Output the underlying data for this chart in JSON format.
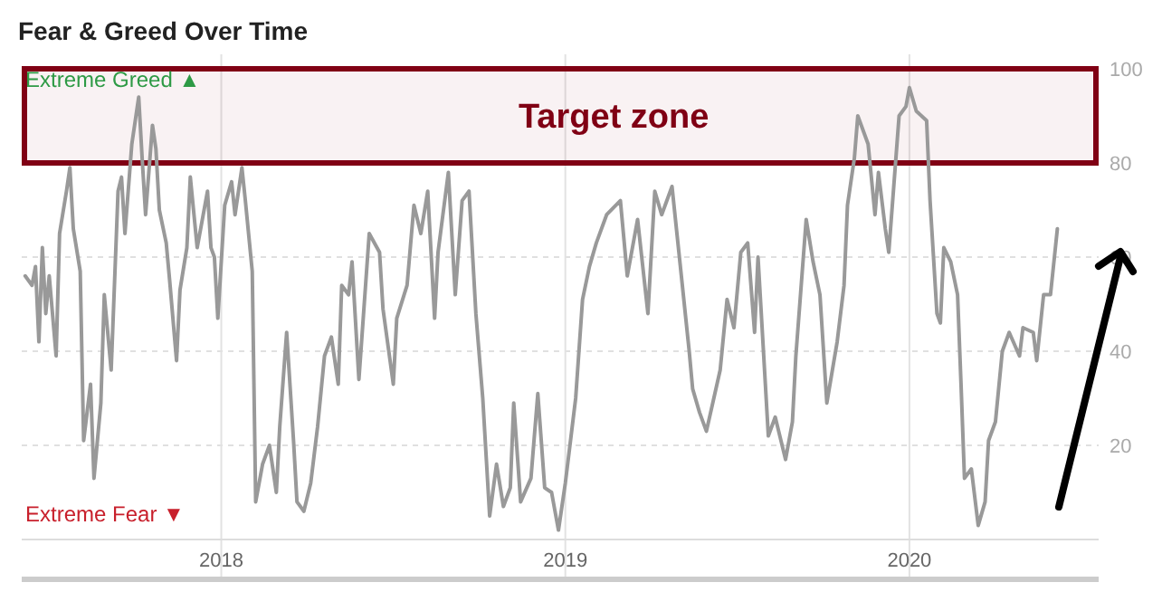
{
  "chart_data": {
    "type": "line",
    "title": "Fear & Greed Over Time",
    "annotations": [
      "Extreme Greed ▲",
      "Extreme Fear ▼"
    ],
    "xlim": [
      2017.42,
      2020.55
    ],
    "xticks": [
      2018,
      2019,
      2020
    ],
    "ylim": [
      0,
      100
    ],
    "yticks": [
      20,
      40,
      60,
      80,
      100
    ],
    "grid": true,
    "marker": "none",
    "line_style": "solid",
    "bands": [
      {
        "axis": "y",
        "from": 80,
        "to": 100,
        "label": "Target zone",
        "color": "#800014"
      }
    ],
    "series": [
      {
        "color": "#999999",
        "x": [
          2017.43,
          2017.45,
          2017.46,
          2017.47,
          2017.48,
          2017.49,
          2017.5,
          2017.52,
          2017.53,
          2017.55,
          2017.56,
          2017.57,
          2017.59,
          2017.6,
          2017.62,
          2017.63,
          2017.65,
          2017.66,
          2017.68,
          2017.7,
          2017.71,
          2017.72,
          2017.74,
          2017.76,
          2017.77,
          2017.78,
          2017.8,
          2017.81,
          2017.82,
          2017.84,
          2017.85,
          2017.87,
          2017.88,
          2017.9,
          2017.91,
          2017.93,
          2017.94,
          2017.96,
          2017.97,
          2017.98,
          2017.99,
          2018.01,
          2018.03,
          2018.04,
          2018.06,
          2018.07,
          2018.09,
          2018.1,
          2018.12,
          2018.14,
          2018.16,
          2018.17,
          2018.19,
          2018.21,
          2018.22,
          2018.24,
          2018.26,
          2018.28,
          2018.3,
          2018.32,
          2018.34,
          2018.35,
          2018.37,
          2018.38,
          2018.4,
          2018.43,
          2018.46,
          2018.47,
          2018.5,
          2018.51,
          2018.54,
          2018.56,
          2018.58,
          2018.6,
          2018.62,
          2018.63,
          2018.66,
          2018.68,
          2018.7,
          2018.72,
          2018.74,
          2018.76,
          2018.78,
          2018.8,
          2018.82,
          2018.84,
          2018.85,
          2018.87,
          2018.9,
          2018.92,
          2018.94,
          2018.96,
          2018.98,
          2019.0,
          2019.03,
          2019.05,
          2019.07,
          2019.09,
          2019.12,
          2019.16,
          2019.18,
          2019.21,
          2019.24,
          2019.26,
          2019.28,
          2019.31,
          2019.33,
          2019.36,
          2019.37,
          2019.39,
          2019.41,
          2019.45,
          2019.47,
          2019.49,
          2019.51,
          2019.53,
          2019.55,
          2019.56,
          2019.59,
          2019.61,
          2019.64,
          2019.66,
          2019.67,
          2019.7,
          2019.72,
          2019.74,
          2019.76,
          2019.79,
          2019.81,
          2019.82,
          2019.84,
          2019.85,
          2019.88,
          2019.9,
          2019.91,
          2019.93,
          2019.94,
          2019.97,
          2019.99,
          2020.0,
          2020.02,
          2020.05,
          2020.06,
          2020.08,
          2020.09,
          2020.1,
          2020.12,
          2020.14,
          2020.15,
          2020.16,
          2020.18,
          2020.2,
          2020.22,
          2020.23,
          2020.25,
          2020.27,
          2020.29,
          2020.32,
          2020.33,
          2020.36,
          2020.37,
          2020.39,
          2020.41,
          2020.43
        ],
        "values": [
          56,
          54,
          58,
          42,
          62,
          48,
          56,
          39,
          65,
          74,
          79,
          66,
          57,
          21,
          33,
          13,
          29,
          52,
          36,
          74,
          77,
          65,
          84,
          94,
          81,
          69,
          88,
          83,
          70,
          63,
          55,
          38,
          53,
          62,
          77,
          62,
          66,
          74,
          62,
          60,
          47,
          71,
          76,
          69,
          79,
          72,
          57,
          8,
          16,
          20,
          10,
          24,
          44,
          21,
          8,
          6,
          12,
          24,
          39,
          43,
          33,
          54,
          52,
          59,
          34,
          65,
          61,
          49,
          33,
          47,
          54,
          71,
          65,
          74,
          47,
          61,
          78,
          52,
          72,
          74,
          48,
          30,
          5,
          16,
          7,
          11,
          29,
          8,
          13,
          31,
          11,
          10,
          2,
          12,
          30,
          51,
          58,
          63,
          69,
          72,
          56,
          68,
          48,
          74,
          69,
          75,
          61,
          40,
          32,
          27,
          23,
          36,
          51,
          45,
          61,
          63,
          44,
          60,
          22,
          26,
          17,
          25,
          39,
          68,
          59,
          52,
          29,
          42,
          54,
          71,
          81,
          90,
          84,
          69,
          78,
          66,
          61,
          90,
          92,
          96,
          91,
          89,
          72,
          48,
          46,
          62,
          59,
          52,
          33,
          13,
          15,
          3,
          8,
          21,
          25,
          40,
          44,
          39,
          45,
          44,
          38,
          52,
          52,
          66
        ]
      }
    ]
  }
}
